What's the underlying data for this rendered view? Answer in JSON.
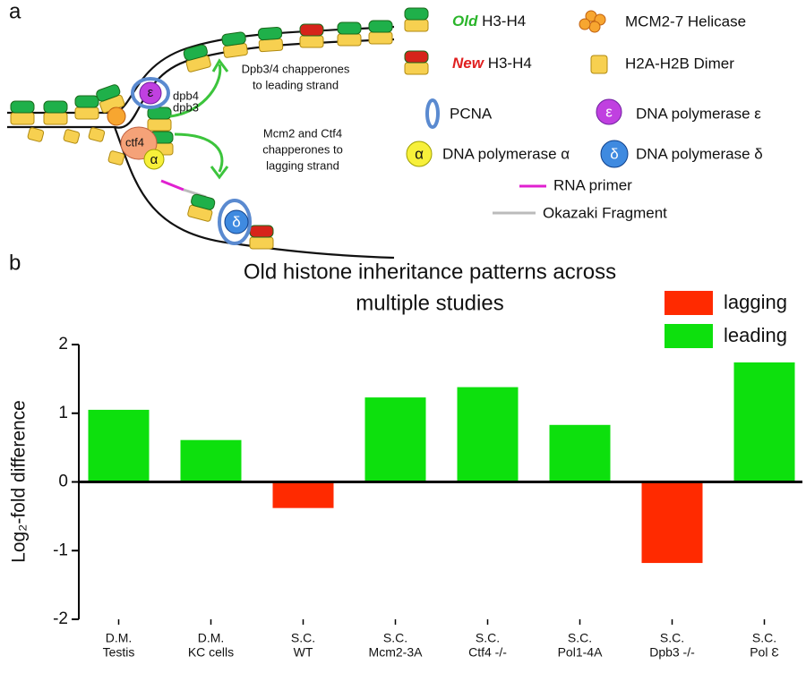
{
  "panel_a": {
    "label": "a",
    "diagram": {
      "dpb4": "dpb4",
      "dpb3": "dpb3",
      "ctf4": "ctf4",
      "epsilon": "ε",
      "alpha": "α",
      "delta": "δ",
      "leading_note": [
        "Dpb3/4 chapperones",
        "to leading strand"
      ],
      "lagging_note": [
        "Mcm2 and Ctf4",
        "chapperones to",
        "lagging strand"
      ]
    },
    "legend": {
      "old_tag": "Old",
      "old_label": "H3-H4",
      "new_tag": "New",
      "new_label": "H3-H4",
      "mcm": "MCM2-7 Helicase",
      "dimer": "H2A-H2B Dimer",
      "pcna": "PCNA",
      "pol_e_symbol": "ε",
      "pol_e": "DNA polymerase ε",
      "pol_a_symbol": "α",
      "pol_a": "DNA polymerase α",
      "pol_d_symbol": "δ",
      "pol_d": "DNA polymerase δ",
      "primer": "RNA primer",
      "okazaki": "Okazaki Fragment"
    }
  },
  "panel_b_label": "b",
  "chart_data": {
    "type": "bar",
    "title": [
      "Old histone inheritance patterns across",
      "multiple studies"
    ],
    "y_label": "Log₂-fold difference",
    "categories": [
      [
        "D.M.",
        "Testis"
      ],
      [
        "D.M.",
        "KC cells"
      ],
      [
        "S.C.",
        "WT"
      ],
      [
        "S.C.",
        "Mcm2-3A"
      ],
      [
        "S.C.",
        "Ctf4 -/-"
      ],
      [
        "S.C.",
        "Pol1-4A"
      ],
      [
        "S.C.",
        "Dpb3 -/-"
      ],
      [
        "S.C.",
        "Pol Ɛ"
      ]
    ],
    "series": [
      {
        "name": "lagging",
        "color": "#ff2a00",
        "values": [
          null,
          null,
          -0.38,
          null,
          null,
          null,
          -1.18,
          null
        ]
      },
      {
        "name": "leading",
        "color": "#0de00d",
        "values": [
          1.05,
          0.61,
          null,
          1.23,
          1.38,
          0.83,
          null,
          1.74
        ]
      }
    ],
    "ylim": [
      -2,
      2
    ],
    "yticks": [
      -2,
      -1,
      0,
      1,
      2
    ],
    "legend": "upper right"
  }
}
